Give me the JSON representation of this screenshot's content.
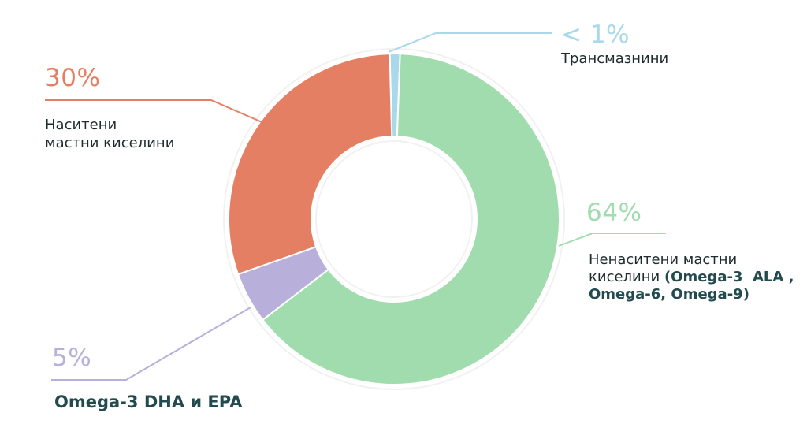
{
  "chart_data": {
    "type": "pie",
    "donut": true,
    "slices": [
      {
        "label": "Трансмазнини",
        "value_label": "< 1%",
        "value": 1,
        "color": "#a8d8ea"
      },
      {
        "label": "Ненаситени мастни киселини (Omega-3 ALA , Omega-6, Omega-9)",
        "value_label": "64%",
        "value": 64,
        "color": "#a0dcae"
      },
      {
        "label": "Omega-3 DHA и EPA",
        "value_label": "5%",
        "value": 5,
        "color": "#b9afdb"
      },
      {
        "label": "Наситени мастни киселини",
        "value_label": "30%",
        "value": 30,
        "color": "#e57f63"
      }
    ]
  },
  "labels": {
    "trans": {
      "pct": "< 1%",
      "line1": "Трансмазнини"
    },
    "unsat": {
      "pct": "64%",
      "line1": "Ненаситени мастни",
      "line2_plain": "киселини ",
      "line2_bold": "(Omega-3  ALA ,",
      "line3_bold": "Omega-6, Omega-9)"
    },
    "omega": {
      "pct": "5%",
      "line1": "Omega-3 DHA и EPA"
    },
    "sat": {
      "pct": "30%",
      "line1": "Наситени",
      "line2": "мастни киселини"
    }
  }
}
